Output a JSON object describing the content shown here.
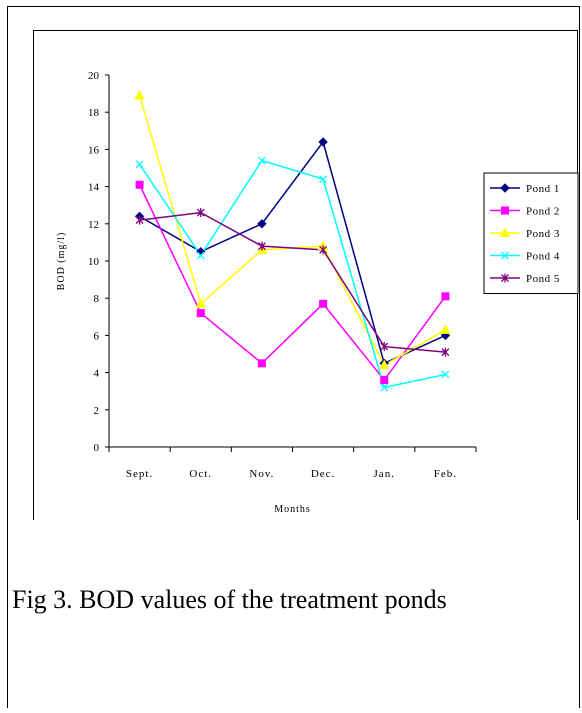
{
  "caption": "Fig 3. BOD values of the treatment ponds",
  "chart_data": {
    "type": "line",
    "title": "",
    "xlabel": "Months",
    "ylabel": "BOD (mg/l)",
    "categories": [
      "Sept.",
      "Oct.",
      "Nov.",
      "Dec.",
      "Jan.",
      "Feb."
    ],
    "ylim": [
      0,
      20
    ],
    "yticks": [
      0,
      2,
      4,
      6,
      8,
      10,
      12,
      14,
      16,
      18,
      20
    ],
    "grid": false,
    "legend_position": "right",
    "series": [
      {
        "name": "Pond 1",
        "color": "#000080",
        "marker": "diamond",
        "values": [
          12.4,
          10.5,
          12.0,
          16.4,
          4.5,
          6.0
        ]
      },
      {
        "name": "Pond 2",
        "color": "#ff00ff",
        "marker": "square",
        "values": [
          14.1,
          7.2,
          4.5,
          7.7,
          3.6,
          8.1
        ]
      },
      {
        "name": "Pond 3",
        "color": "#ffff00",
        "marker": "triangle",
        "values": [
          18.9,
          7.7,
          10.6,
          10.8,
          4.4,
          6.3
        ]
      },
      {
        "name": "Pond 4",
        "color": "#00ffff",
        "marker": "x",
        "values": [
          15.2,
          10.3,
          15.4,
          14.4,
          3.2,
          3.9
        ]
      },
      {
        "name": "Pond 5",
        "color": "#800080",
        "marker": "star",
        "values": [
          12.2,
          12.6,
          10.8,
          10.6,
          5.4,
          5.1
        ]
      }
    ]
  }
}
